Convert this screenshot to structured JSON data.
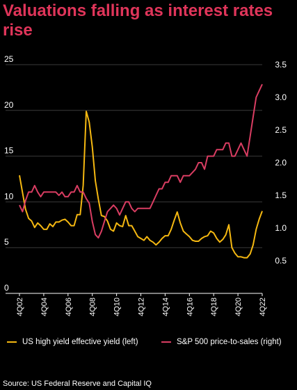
{
  "title": "Valuations falling as interest rates rise",
  "source": "Source: US Federal Reserve and Capital IQ",
  "colors": {
    "yield": "#f5b811",
    "ps": "#d93d62",
    "title": "#e0355a",
    "background": "#000000",
    "grid": "#3a3a3a"
  },
  "chart_data": {
    "type": "line",
    "title": "Valuations falling as interest rates rise",
    "xlabel": "",
    "ylabel_left": "",
    "ylabel_right": "",
    "ylim_left": [
      0,
      25
    ],
    "ylim_right": [
      0,
      3.5
    ],
    "yticks_left": [
      "0",
      "5",
      "10",
      "15",
      "20",
      "25"
    ],
    "yticks_right": [
      "0.5",
      "1.0",
      "1.5",
      "2.0",
      "2.5",
      "3.0",
      "3.5"
    ],
    "xticks": [
      "4Q02",
      "4Q04",
      "4Q06",
      "4Q08",
      "4Q10",
      "4Q12",
      "4Q14",
      "4Q16",
      "4Q18",
      "4Q20",
      "4Q22"
    ],
    "grid": "horizontal",
    "legend_position": "bottom",
    "x": [
      "4Q02",
      "1Q03",
      "2Q03",
      "3Q03",
      "4Q03",
      "1Q04",
      "2Q04",
      "3Q04",
      "4Q04",
      "1Q05",
      "2Q05",
      "3Q05",
      "4Q05",
      "1Q06",
      "2Q06",
      "3Q06",
      "4Q06",
      "1Q07",
      "2Q07",
      "3Q07",
      "4Q07",
      "1Q08",
      "2Q08",
      "3Q08",
      "4Q08",
      "1Q09",
      "2Q09",
      "3Q09",
      "4Q09",
      "1Q10",
      "2Q10",
      "3Q10",
      "4Q10",
      "1Q11",
      "2Q11",
      "3Q11",
      "4Q11",
      "1Q12",
      "2Q12",
      "3Q12",
      "4Q12",
      "1Q13",
      "2Q13",
      "3Q13",
      "4Q13",
      "1Q14",
      "2Q14",
      "3Q14",
      "4Q14",
      "1Q15",
      "2Q15",
      "3Q15",
      "4Q15",
      "1Q16",
      "2Q16",
      "3Q16",
      "4Q16",
      "1Q17",
      "2Q17",
      "3Q17",
      "4Q17",
      "1Q18",
      "2Q18",
      "3Q18",
      "4Q18",
      "1Q19",
      "2Q19",
      "3Q19",
      "4Q19",
      "1Q20",
      "2Q20",
      "3Q20",
      "4Q20",
      "1Q21",
      "2Q21",
      "3Q21",
      "4Q21",
      "1Q22",
      "2Q22",
      "3Q22",
      "4Q22"
    ],
    "series": [
      {
        "name": "US high yield effective yield (left)",
        "axis": "left",
        "values": [
          12.9,
          11.0,
          9.2,
          8.2,
          7.9,
          7.2,
          7.7,
          7.4,
          7.0,
          7.0,
          7.6,
          7.3,
          7.8,
          7.8,
          8.0,
          8.1,
          7.8,
          7.4,
          7.4,
          8.6,
          8.6,
          11.8,
          19.9,
          18.7,
          16.0,
          12.3,
          10.3,
          8.5,
          8.4,
          7.9,
          7.0,
          6.8,
          7.7,
          7.4,
          7.3,
          8.5,
          7.4,
          7.4,
          6.8,
          6.2,
          6.0,
          5.8,
          6.2,
          5.8,
          5.6,
          5.3,
          5.6,
          6.0,
          6.3,
          6.3,
          7.0,
          8.0,
          8.9,
          7.7,
          6.8,
          6.5,
          6.2,
          5.8,
          5.7,
          5.7,
          6.0,
          6.2,
          6.3,
          6.8,
          6.6,
          6.0,
          5.6,
          5.9,
          6.4,
          7.5,
          5.0,
          4.4,
          4.0,
          4.0,
          3.9,
          3.9,
          4.3,
          5.3,
          7.0,
          8.1,
          9.0
        ]
      },
      {
        "name": "S&P 500 price-to-sales (right)",
        "axis": "right",
        "values": [
          1.35,
          1.25,
          1.42,
          1.55,
          1.55,
          1.65,
          1.55,
          1.48,
          1.55,
          1.55,
          1.55,
          1.55,
          1.55,
          1.5,
          1.55,
          1.48,
          1.48,
          1.55,
          1.55,
          1.65,
          1.55,
          1.55,
          1.45,
          1.38,
          1.1,
          0.9,
          0.85,
          0.95,
          1.1,
          1.25,
          1.3,
          1.35,
          1.3,
          1.2,
          1.3,
          1.4,
          1.4,
          1.3,
          1.25,
          1.3,
          1.3,
          1.3,
          1.3,
          1.3,
          1.4,
          1.5,
          1.6,
          1.6,
          1.7,
          1.7,
          1.8,
          1.8,
          1.8,
          1.7,
          1.8,
          1.8,
          1.8,
          1.85,
          1.9,
          2.0,
          2.0,
          1.9,
          2.1,
          2.1,
          2.1,
          2.2,
          2.2,
          2.2,
          2.3,
          2.3,
          2.1,
          2.1,
          2.2,
          2.3,
          2.2,
          2.1,
          2.4,
          2.7,
          3.0,
          3.1,
          3.2
        ]
      }
    ]
  }
}
